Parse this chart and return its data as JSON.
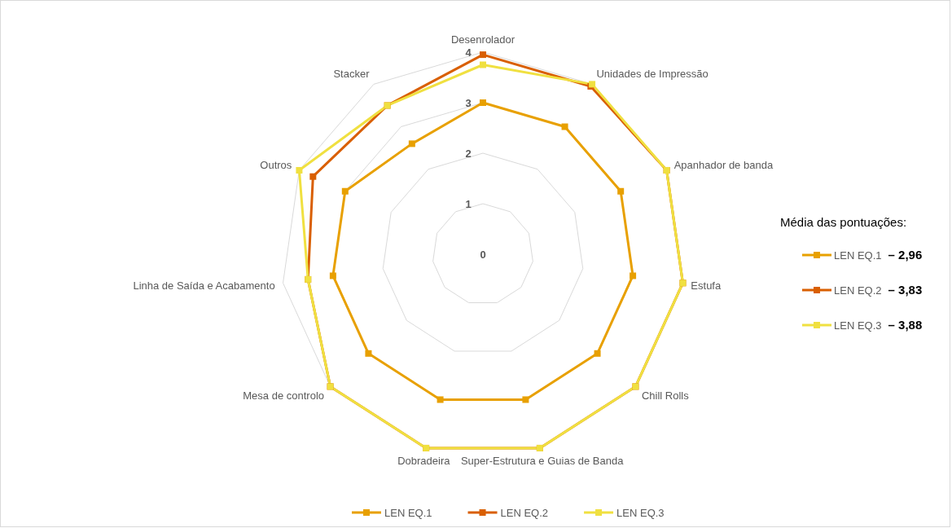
{
  "chart_data": {
    "type": "radar",
    "categories": [
      "Desenrolador",
      "Unidades de Impressão",
      "Apanhador de banda",
      "Estufa",
      "Chill Rolls",
      "Super-Estrutura e Guias de Banda",
      "Dobradeira",
      "Mesa de controlo",
      "Linha de Saída e Acabamento",
      "Outros",
      "Stacker"
    ],
    "series": [
      {
        "name": "LEN EQ.1",
        "color": "#e8a000",
        "values": [
          3,
          3,
          3,
          3,
          3,
          3,
          3,
          3,
          3,
          3,
          2.6
        ]
      },
      {
        "name": "LEN EQ.2",
        "color": "#d95f02",
        "values": [
          3.95,
          3.95,
          4,
          4,
          4,
          4,
          4,
          4,
          3.5,
          3.7,
          3.5
        ]
      },
      {
        "name": "LEN EQ.3",
        "color": "#f0e040",
        "values": [
          3.75,
          4,
          4,
          4,
          4,
          4,
          4,
          4,
          3.5,
          4,
          3.5
        ]
      }
    ],
    "ylim": [
      0,
      4
    ],
    "yticks": [
      0,
      1,
      2,
      3,
      4
    ],
    "grid": true,
    "marker": "square",
    "legend": "bottom",
    "legend_title": "Média das pontuações:",
    "annotations": [
      "– 2,96",
      "– 3,83",
      "– 3,88"
    ]
  }
}
